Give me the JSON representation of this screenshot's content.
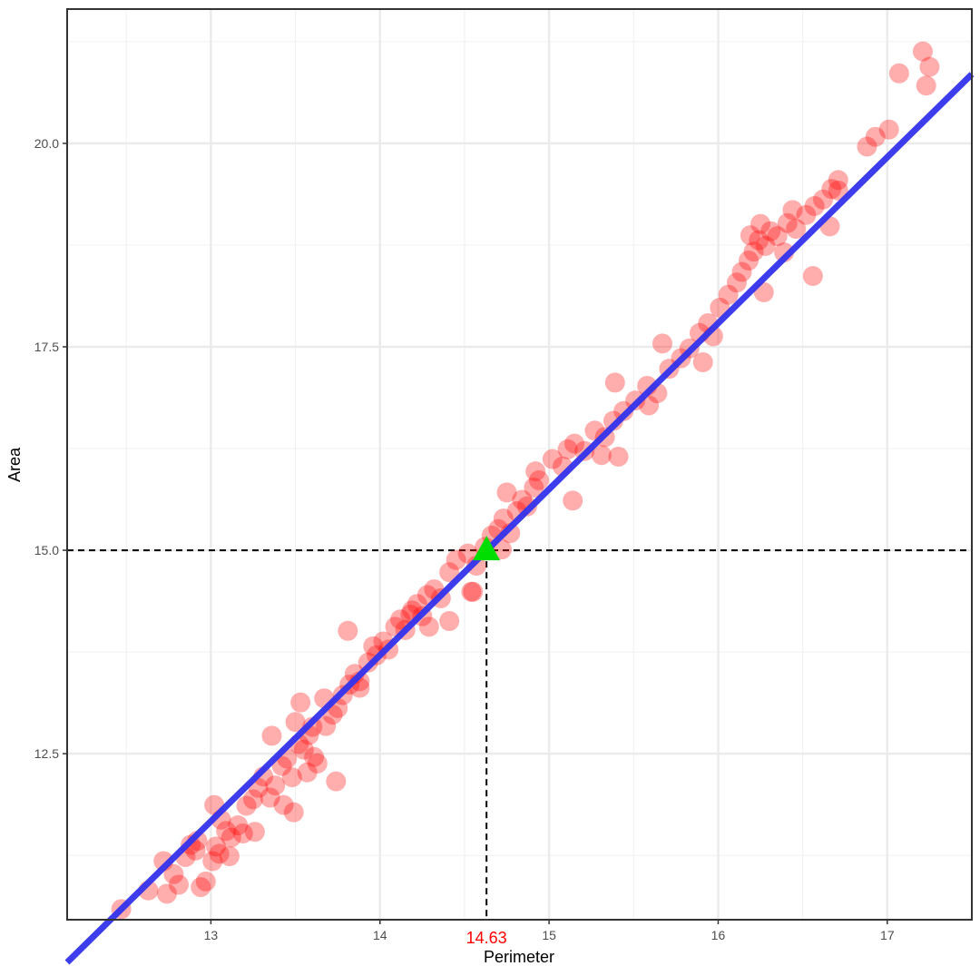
{
  "chart_data": {
    "type": "scatter",
    "xlabel": "Perimeter",
    "ylabel": "Area",
    "xlim": [
      12.15,
      17.5
    ],
    "ylim": [
      10.46,
      21.65
    ],
    "x_ticks": [
      13,
      14,
      15,
      16,
      17
    ],
    "x_tick_labels": [
      "13",
      "14",
      "15",
      "16",
      "17"
    ],
    "y_ticks": [
      12.5,
      15.0,
      17.5,
      20.0
    ],
    "y_tick_labels": [
      "12.5",
      "15.0",
      "17.5",
      "20.0"
    ],
    "grid": true,
    "colors": {
      "points": "#ff0000",
      "fit_line": "#3333ee",
      "highlight": "#00dd00",
      "annotation": "#ff0000",
      "guide_lines": "#000000"
    },
    "fit_line": {
      "slope": 2.04,
      "intercept": -14.85
    },
    "highlight_point": {
      "x": 14.63,
      "y": 15.0,
      "marker": "triangle"
    },
    "guide_lines": {
      "x": 14.63,
      "y": 15.0,
      "style": "dashed"
    },
    "annotation": {
      "text": "14.63",
      "x": 14.63
    },
    "points": [
      [
        12.47,
        10.59
      ],
      [
        12.63,
        10.82
      ],
      [
        12.72,
        11.18
      ],
      [
        12.78,
        11.02
      ],
      [
        12.81,
        10.89
      ],
      [
        12.85,
        11.23
      ],
      [
        12.88,
        11.38
      ],
      [
        12.91,
        11.31
      ],
      [
        12.94,
        10.86
      ],
      [
        12.97,
        10.93
      ],
      [
        13.01,
        11.18
      ],
      [
        13.03,
        11.36
      ],
      [
        13.05,
        11.27
      ],
      [
        13.09,
        11.55
      ],
      [
        13.12,
        11.47
      ],
      [
        13.16,
        11.62
      ],
      [
        13.21,
        11.86
      ],
      [
        13.25,
        11.94
      ],
      [
        13.28,
        12.08
      ],
      [
        13.31,
        12.22
      ],
      [
        13.35,
        11.96
      ],
      [
        13.38,
        12.11
      ],
      [
        13.42,
        12.35
      ],
      [
        13.45,
        12.44
      ],
      [
        13.48,
        12.21
      ],
      [
        13.52,
        12.62
      ],
      [
        13.55,
        12.55
      ],
      [
        13.58,
        12.73
      ],
      [
        13.61,
        12.46
      ],
      [
        13.63,
        12.38
      ],
      [
        13.68,
        12.84
      ],
      [
        13.72,
        12.98
      ],
      [
        13.75,
        13.06
      ],
      [
        13.78,
        13.22
      ],
      [
        13.82,
        13.35
      ],
      [
        13.85,
        13.48
      ],
      [
        13.88,
        13.39
      ],
      [
        13.93,
        13.62
      ],
      [
        13.98,
        13.71
      ],
      [
        14.02,
        13.88
      ],
      [
        14.05,
        13.78
      ],
      [
        14.09,
        14.06
      ],
      [
        14.12,
        14.15
      ],
      [
        14.15,
        14.02
      ],
      [
        14.19,
        14.26
      ],
      [
        14.22,
        14.34
      ],
      [
        14.25,
        14.19
      ],
      [
        14.28,
        14.45
      ],
      [
        14.32,
        14.52
      ],
      [
        14.36,
        14.41
      ],
      [
        14.41,
        14.73
      ],
      [
        14.45,
        14.88
      ],
      [
        14.52,
        14.96
      ],
      [
        14.57,
        14.81
      ],
      [
        14.62,
        15.04
      ],
      [
        14.66,
        15.18
      ],
      [
        14.7,
        15.26
      ],
      [
        14.73,
        15.39
      ],
      [
        14.77,
        15.21
      ],
      [
        14.81,
        15.48
      ],
      [
        14.84,
        15.62
      ],
      [
        14.87,
        15.54
      ],
      [
        14.91,
        15.77
      ],
      [
        14.94,
        15.86
      ],
      [
        15.02,
        16.12
      ],
      [
        15.08,
        16.03
      ],
      [
        15.15,
        16.31
      ],
      [
        15.21,
        16.22
      ],
      [
        15.27,
        16.47
      ],
      [
        15.33,
        16.39
      ],
      [
        15.38,
        16.59
      ],
      [
        15.44,
        16.71
      ],
      [
        15.51,
        16.84
      ],
      [
        15.58,
        17.02
      ],
      [
        15.64,
        16.93
      ],
      [
        15.71,
        17.23
      ],
      [
        15.78,
        17.36
      ],
      [
        15.83,
        17.48
      ],
      [
        15.89,
        17.67
      ],
      [
        15.94,
        17.79
      ],
      [
        16.01,
        17.98
      ],
      [
        16.06,
        18.14
      ],
      [
        16.11,
        18.29
      ],
      [
        16.14,
        18.42
      ],
      [
        16.18,
        18.56
      ],
      [
        16.21,
        18.67
      ],
      [
        16.24,
        18.81
      ],
      [
        16.28,
        18.74
      ],
      [
        16.31,
        18.92
      ],
      [
        16.35,
        18.86
      ],
      [
        16.41,
        19.02
      ],
      [
        16.46,
        18.95
      ],
      [
        16.52,
        19.12
      ],
      [
        16.57,
        19.23
      ],
      [
        16.62,
        19.31
      ],
      [
        16.67,
        19.44
      ],
      [
        16.71,
        19.55
      ],
      [
        16.88,
        19.96
      ],
      [
        16.93,
        20.08
      ],
      [
        17.01,
        20.17
      ],
      [
        17.07,
        20.86
      ],
      [
        17.21,
        21.13
      ],
      [
        17.25,
        20.94
      ],
      [
        17.23,
        20.71
      ],
      [
        16.56,
        18.37
      ],
      [
        16.27,
        18.17
      ],
      [
        15.59,
        16.78
      ],
      [
        15.41,
        16.15
      ],
      [
        15.14,
        15.61
      ],
      [
        15.31,
        16.17
      ],
      [
        14.72,
        15.01
      ],
      [
        14.55,
        14.49
      ],
      [
        14.18,
        14.21
      ],
      [
        14.29,
        14.06
      ],
      [
        14.41,
        14.13
      ],
      [
        13.81,
        14.01
      ],
      [
        13.96,
        13.82
      ],
      [
        13.67,
        13.18
      ],
      [
        13.74,
        12.16
      ],
      [
        13.57,
        12.27
      ],
      [
        13.49,
        11.78
      ],
      [
        13.43,
        11.87
      ],
      [
        13.26,
        11.54
      ],
      [
        13.19,
        11.52
      ],
      [
        12.92,
        11.43
      ],
      [
        12.74,
        10.78
      ],
      [
        13.02,
        11.87
      ],
      [
        13.11,
        11.24
      ],
      [
        13.06,
        11.69
      ],
      [
        13.5,
        12.89
      ],
      [
        13.53,
        13.13
      ],
      [
        13.88,
        13.31
      ],
      [
        13.6,
        12.83
      ],
      [
        13.36,
        12.72
      ],
      [
        14.54,
        14.49
      ],
      [
        14.75,
        15.71
      ],
      [
        14.92,
        15.97
      ],
      [
        15.11,
        16.24
      ],
      [
        15.39,
        17.06
      ],
      [
        15.67,
        17.54
      ],
      [
        15.91,
        17.31
      ],
      [
        15.97,
        17.63
      ],
      [
        16.19,
        18.87
      ],
      [
        16.25,
        19.01
      ],
      [
        16.39,
        18.66
      ],
      [
        16.44,
        19.18
      ],
      [
        16.66,
        18.98
      ],
      [
        16.71,
        19.42
      ]
    ]
  }
}
